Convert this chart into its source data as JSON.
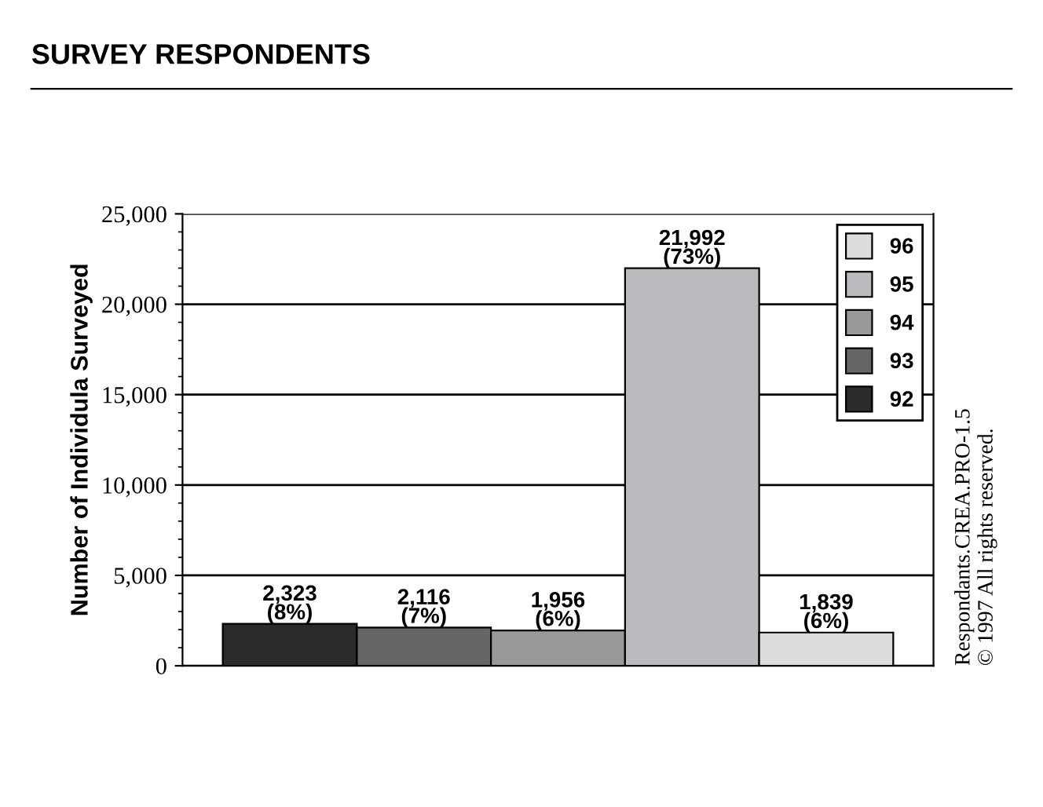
{
  "chart_data": {
    "type": "bar",
    "title": "SURVEY RESPONDENTS",
    "ylabel": "Number of Individula Surveyed",
    "categories": [
      null,
      null,
      null,
      null,
      null
    ],
    "series": [
      {
        "name": "92",
        "color": "#2b2b2b",
        "values": [
          2323,
          null,
          null,
          null,
          null
        ],
        "value_labels": [
          "2,323\n(8%)",
          null,
          null,
          null,
          null
        ]
      },
      {
        "name": "93",
        "color": "#666666",
        "values": [
          null,
          2116,
          null,
          null,
          null
        ],
        "value_labels": [
          null,
          "2,116\n(7%)",
          null,
          null,
          null
        ]
      },
      {
        "name": "94",
        "color": "#999999",
        "values": [
          null,
          null,
          1956,
          null,
          null
        ],
        "value_labels": [
          null,
          null,
          "1,956\n(6%)",
          null,
          null
        ]
      },
      {
        "name": "95",
        "color": "#bbbbbf",
        "values": [
          null,
          null,
          null,
          21992,
          null
        ],
        "value_labels": [
          null,
          null,
          null,
          "21,992\n(73%)",
          null
        ]
      },
      {
        "name": "96",
        "color": "#dddddd",
        "values": [
          null,
          null,
          null,
          null,
          1839
        ],
        "value_labels": [
          null,
          null,
          null,
          null,
          "1,839\n(6%)"
        ]
      }
    ],
    "ylim": [
      0,
      25000
    ],
    "yticks": [
      {
        "value": 0,
        "label": "0"
      },
      {
        "value": 5000,
        "label": "5,000"
      },
      {
        "value": 10000,
        "label": "10,000"
      },
      {
        "value": 15000,
        "label": "15,000"
      },
      {
        "value": 20000,
        "label": "20,000"
      },
      {
        "value": 25000,
        "label": "25,000"
      }
    ],
    "grid": "y",
    "legend": "top right",
    "annotations": [
      "Respondants.CREA.PRO-1.5",
      "© 1997 All rights reserved."
    ]
  }
}
